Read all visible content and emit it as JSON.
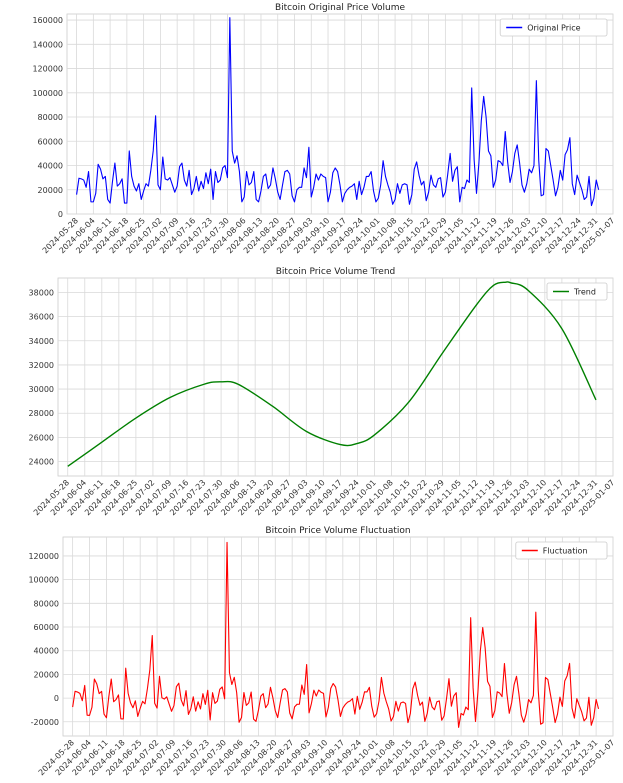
{
  "chart_data": [
    {
      "type": "line",
      "title": "Bitcoin Original Price Volume",
      "legend": "top-right",
      "grid": true,
      "ylim": [
        0,
        165000
      ],
      "yticks": [
        0,
        20000,
        40000,
        60000,
        80000,
        100000,
        120000,
        140000,
        160000
      ],
      "xlim": [
        "2024-05-24",
        "2025-01-07"
      ],
      "xticks": [
        "2024-05-28",
        "2024-06-04",
        "2024-06-11",
        "2024-06-18",
        "2024-06-25",
        "2024-07-02",
        "2024-07-09",
        "2024-07-16",
        "2024-07-23",
        "2024-07-30",
        "2024-08-06",
        "2024-08-13",
        "2024-08-20",
        "2024-08-27",
        "2024-09-03",
        "2024-09-10",
        "2024-09-17",
        "2024-09-24",
        "2024-10-01",
        "2024-10-08",
        "2024-10-15",
        "2024-10-22",
        "2024-10-29",
        "2024-11-05",
        "2024-11-12",
        "2024-11-19",
        "2024-11-26",
        "2024-12-03",
        "2024-12-10",
        "2024-12-17",
        "2024-12-24",
        "2024-12-31",
        "2025-01-07"
      ],
      "series": [
        {
          "name": "Original Price",
          "color": "#0000ff",
          "x_start": "2024-05-28",
          "x_step_days": 1,
          "values": [
            16000,
            29500,
            29000,
            28000,
            22000,
            35000,
            10000,
            10000,
            17000,
            41000,
            37000,
            29000,
            31000,
            12000,
            9000,
            27000,
            42000,
            23000,
            25000,
            29000,
            9000,
            9000,
            52000,
            31000,
            23000,
            19000,
            25000,
            12000,
            19000,
            25000,
            23000,
            36000,
            52000,
            81000,
            24000,
            20000,
            47000,
            29000,
            28000,
            30000,
            24000,
            18000,
            23000,
            39000,
            42000,
            28000,
            23000,
            36000,
            16000,
            21000,
            31000,
            19000,
            27000,
            21000,
            34000,
            25000,
            37000,
            12000,
            35000,
            26000,
            28000,
            38000,
            40000,
            30000,
            162000,
            52000,
            42000,
            48000,
            35000,
            10000,
            14000,
            35000,
            24000,
            26000,
            35000,
            12000,
            10000,
            19000,
            31000,
            33000,
            21000,
            24000,
            38000,
            29000,
            18000,
            12000,
            24000,
            35000,
            36000,
            33000,
            15000,
            10000,
            20000,
            22000,
            22000,
            38000,
            30000,
            55000,
            14000,
            22000,
            33000,
            28000,
            33000,
            31000,
            30000,
            10000,
            18000,
            34000,
            38000,
            35000,
            24000,
            10000,
            17000,
            20000,
            22000,
            23000,
            25000,
            12000,
            27000,
            16000,
            22000,
            31000,
            31000,
            35000,
            19000,
            10000,
            13000,
            24000,
            44000,
            31000,
            24000,
            18000,
            8000,
            12000,
            25000,
            17000,
            24000,
            25000,
            24000,
            8000,
            16000,
            37000,
            43000,
            32000,
            24000,
            27000,
            11000,
            18000,
            32000,
            24000,
            22000,
            29000,
            30000,
            14000,
            18000,
            33000,
            50000,
            27000,
            36000,
            39000,
            10000,
            22000,
            21000,
            28000,
            26000,
            104000,
            45000,
            17000,
            42000,
            77000,
            97000,
            80000,
            52000,
            48000,
            22000,
            28000,
            44000,
            43000,
            40000,
            68000,
            43000,
            26000,
            35000,
            50000,
            57000,
            42000,
            24000,
            18000,
            25000,
            37000,
            34000,
            40000,
            110000,
            44000,
            15000,
            16000,
            54000,
            52000,
            40000,
            28000,
            15000,
            22000,
            36000,
            28000,
            49000,
            53000,
            63000,
            25000,
            16000,
            32000,
            26000,
            20000,
            12000,
            14000,
            31000,
            7000,
            13000,
            28000,
            20000
          ]
        }
      ]
    },
    {
      "type": "line",
      "title": "Bitcoin Price Volume Trend",
      "legend": "top-right",
      "grid": true,
      "ylim": [
        22800,
        39200
      ],
      "yticks": [
        24000,
        26000,
        28000,
        30000,
        32000,
        34000,
        36000,
        38000
      ],
      "xlim": [
        "2024-05-24",
        "2025-01-07"
      ],
      "xticks": [
        "2024-05-28",
        "2024-06-04",
        "2024-06-11",
        "2024-06-18",
        "2024-06-25",
        "2024-07-02",
        "2024-07-09",
        "2024-07-16",
        "2024-07-23",
        "2024-07-30",
        "2024-08-06",
        "2024-08-13",
        "2024-08-20",
        "2024-08-27",
        "2024-09-03",
        "2024-09-10",
        "2024-09-17",
        "2024-09-24",
        "2024-10-01",
        "2024-10-08",
        "2024-10-15",
        "2024-10-22",
        "2024-10-29",
        "2024-11-05",
        "2024-11-12",
        "2024-11-19",
        "2024-11-26",
        "2024-12-03",
        "2024-12-10",
        "2024-12-17",
        "2024-12-24",
        "2024-12-31",
        "2025-01-07"
      ],
      "series": [
        {
          "name": "Trend",
          "color": "#008000",
          "points": [
            [
              "2024-05-28",
              23600
            ],
            [
              "2024-06-11",
              25600
            ],
            [
              "2024-06-25",
              27600
            ],
            [
              "2024-07-09",
              29300
            ],
            [
              "2024-07-23",
              30400
            ],
            [
              "2024-07-30",
              30600
            ],
            [
              "2024-08-06",
              30400
            ],
            [
              "2024-08-20",
              28600
            ],
            [
              "2024-09-03",
              26500
            ],
            [
              "2024-09-17",
              25400
            ],
            [
              "2024-09-24",
              25500
            ],
            [
              "2024-10-01",
              26200
            ],
            [
              "2024-10-15",
              28900
            ],
            [
              "2024-10-29",
              33000
            ],
            [
              "2024-11-12",
              37000
            ],
            [
              "2024-11-19",
              38600
            ],
            [
              "2024-11-24",
              38850
            ],
            [
              "2024-11-26",
              38800
            ],
            [
              "2024-12-03",
              38200
            ],
            [
              "2024-12-17",
              35000
            ],
            [
              "2024-12-31",
              29100
            ]
          ]
        }
      ]
    },
    {
      "type": "line",
      "title": "Bitcoin Price Volume Fluctuation",
      "legend": "top-right",
      "grid": true,
      "ylim": [
        -32000,
        136000
      ],
      "yticks": [
        -20000,
        0,
        20000,
        40000,
        60000,
        80000,
        100000,
        120000
      ],
      "xlim": [
        "2024-05-24",
        "2025-01-07"
      ],
      "xticks": [
        "2024-05-28",
        "2024-06-04",
        "2024-06-11",
        "2024-06-18",
        "2024-06-25",
        "2024-07-02",
        "2024-07-09",
        "2024-07-16",
        "2024-07-23",
        "2024-07-30",
        "2024-08-06",
        "2024-08-13",
        "2024-08-20",
        "2024-08-27",
        "2024-09-03",
        "2024-09-10",
        "2024-09-17",
        "2024-09-24",
        "2024-10-01",
        "2024-10-08",
        "2024-10-15",
        "2024-10-22",
        "2024-10-29",
        "2024-11-05",
        "2024-11-12",
        "2024-11-19",
        "2024-11-26",
        "2024-12-03",
        "2024-12-10",
        "2024-12-17",
        "2024-12-24",
        "2024-12-31",
        "2025-01-07"
      ],
      "series": [
        {
          "name": "Fluctuation",
          "color": "#ff0000",
          "x_start": "2024-05-28",
          "x_step_days": 1,
          "values": []
        }
      ]
    }
  ]
}
